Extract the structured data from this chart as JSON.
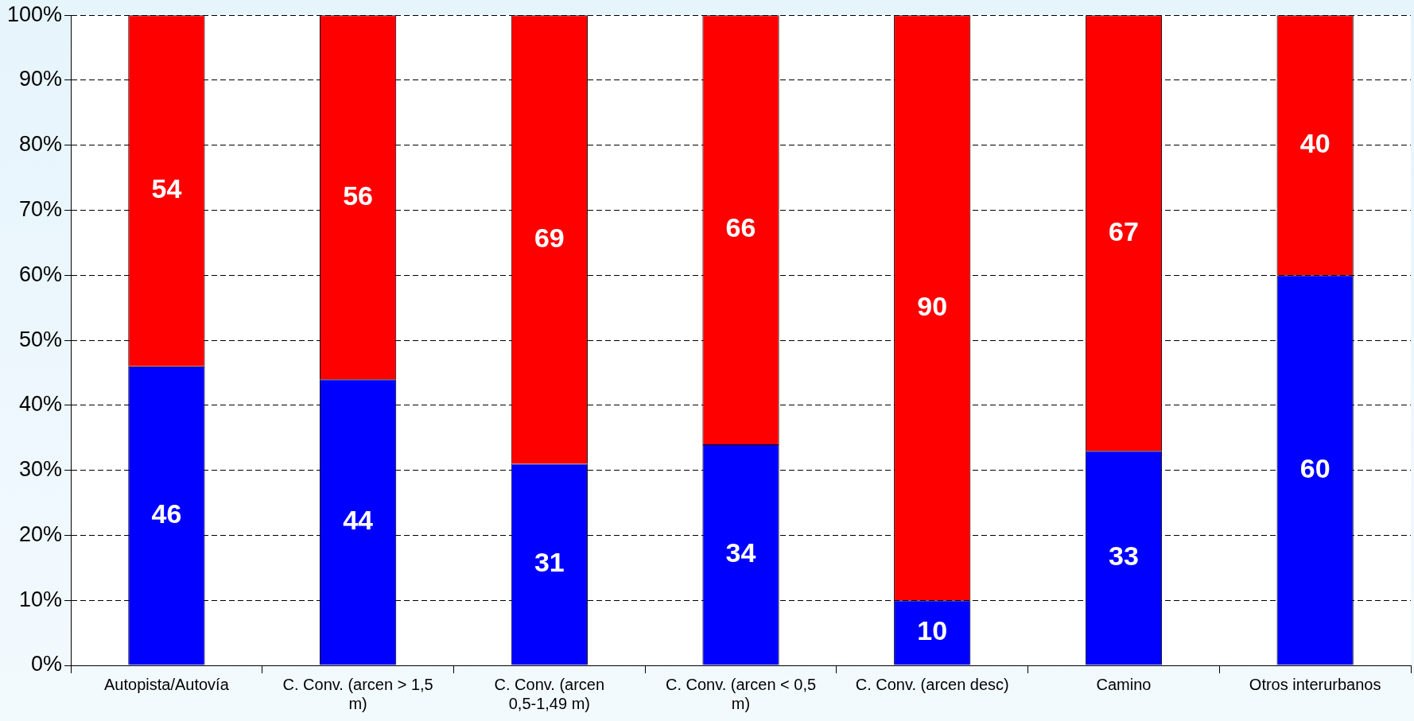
{
  "chart_data": {
    "type": "bar",
    "stacked": true,
    "categories": [
      "Autopista/Autovía",
      "C. Conv. (arcen > 1,5 m)",
      "C. Conv. (arcen 0,5-1,49 m)",
      "C. Conv. (arcen < 0,5 m)",
      "C. Conv. (arcen desc)",
      "Camino",
      "Otros interurbanos"
    ],
    "series": [
      {
        "color": "#0000ff",
        "values": [
          46,
          44,
          31,
          34,
          10,
          33,
          60
        ]
      },
      {
        "color": "#ff0000",
        "values": [
          54,
          56,
          69,
          66,
          90,
          67,
          40
        ]
      }
    ],
    "ylim": [
      0,
      100
    ],
    "yticks": [
      {
        "value": 0,
        "label": "0%"
      },
      {
        "value": 10,
        "label": "10%"
      },
      {
        "value": 20,
        "label": "20%"
      },
      {
        "value": 30,
        "label": "30%"
      },
      {
        "value": 40,
        "label": "40%"
      },
      {
        "value": 50,
        "label": "50%"
      },
      {
        "value": 60,
        "label": "60%"
      },
      {
        "value": 70,
        "label": "70%"
      },
      {
        "value": 80,
        "label": "80%"
      },
      {
        "value": 90,
        "label": "90%"
      },
      {
        "value": 100,
        "label": "100%"
      }
    ],
    "grid": "y",
    "legend": false,
    "data_labels": true
  }
}
